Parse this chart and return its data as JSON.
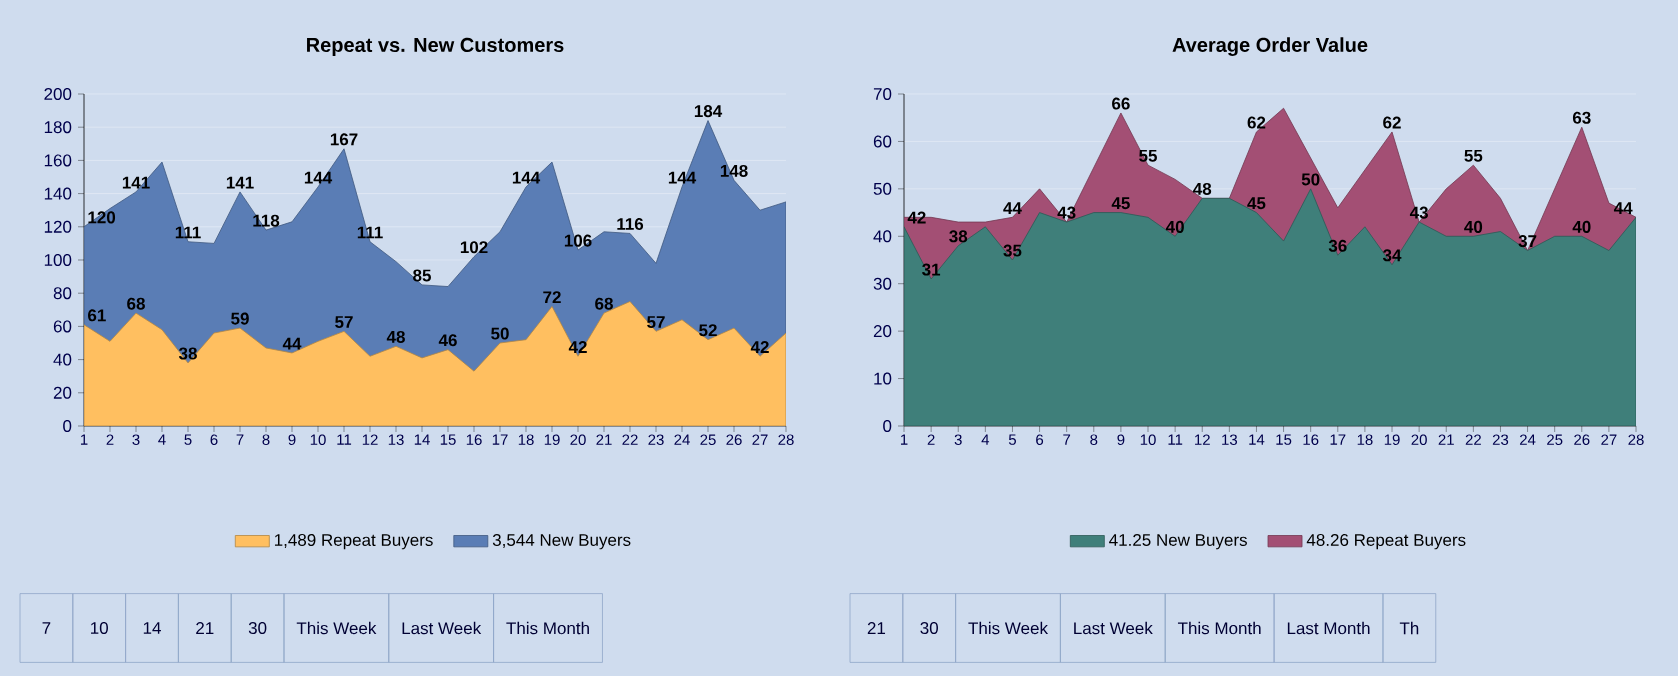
{
  "chart_data": [
    {
      "type": "area",
      "title": "Repeat vs. New Customers",
      "x": [
        1,
        2,
        3,
        4,
        5,
        6,
        7,
        8,
        9,
        10,
        11,
        12,
        13,
        14,
        15,
        16,
        17,
        18,
        19,
        20,
        21,
        22,
        23,
        24,
        25,
        26,
        27,
        28
      ],
      "xlim": [
        1,
        28
      ],
      "xticks": [
        1,
        2,
        3,
        4,
        5,
        6,
        7,
        8,
        9,
        10,
        11,
        12,
        13,
        14,
        15,
        16,
        17,
        18,
        19,
        20,
        21,
        22,
        23,
        24,
        25,
        26,
        27,
        28
      ],
      "ylim": [
        0,
        200
      ],
      "yticks": [
        0,
        20,
        40,
        60,
        80,
        100,
        120,
        140,
        160,
        180,
        200
      ],
      "grid": "y",
      "legend": "bottom",
      "series": [
        {
          "name": "1,489 Repeat Buyers",
          "color": "#ffbf60",
          "values": [
            61,
            51,
            68,
            58,
            38,
            56,
            59,
            47,
            44,
            51,
            57,
            42,
            48,
            41,
            46,
            33,
            50,
            52,
            72,
            42,
            68,
            75,
            57,
            64,
            52,
            59,
            42,
            56
          ],
          "value_labels": [
            "61",
            null,
            "68",
            null,
            "38",
            null,
            "59",
            null,
            "44",
            null,
            "57",
            null,
            "48",
            null,
            "46",
            null,
            "50",
            null,
            "72",
            "42",
            "68",
            null,
            "57",
            null,
            "52",
            null,
            "42",
            null
          ]
        },
        {
          "name": "3,544 New Buyers",
          "color": "#5a7db5",
          "values": [
            120,
            131,
            141,
            159,
            111,
            110,
            141,
            118,
            123,
            144,
            167,
            111,
            99,
            85,
            84,
            102,
            117,
            144,
            159,
            106,
            117,
            116,
            98,
            144,
            184,
            148,
            130,
            135
          ],
          "value_labels": [
            "120",
            null,
            "141",
            null,
            "111",
            null,
            "141",
            "118",
            null,
            "144",
            "167",
            "111",
            null,
            "85",
            null,
            "102",
            null,
            "144",
            null,
            "106",
            null,
            "116",
            null,
            "144",
            "184",
            "148",
            null,
            null
          ]
        }
      ],
      "annotations": [
        "7",
        "10",
        "14",
        "21",
        "30",
        "This Week",
        "Last Week",
        "This Month"
      ]
    },
    {
      "type": "area",
      "title": "Average Order Value",
      "x": [
        1,
        2,
        3,
        4,
        5,
        6,
        7,
        8,
        9,
        10,
        11,
        12,
        13,
        14,
        15,
        16,
        17,
        18,
        19,
        20,
        21,
        22,
        23,
        24,
        25,
        26,
        27,
        28
      ],
      "xlim": [
        1,
        28
      ],
      "xticks": [
        1,
        2,
        3,
        4,
        5,
        6,
        7,
        8,
        9,
        10,
        11,
        12,
        13,
        14,
        15,
        16,
        17,
        18,
        19,
        20,
        21,
        22,
        23,
        24,
        25,
        26,
        27,
        28
      ],
      "ylim": [
        0,
        70
      ],
      "yticks": [
        0,
        10,
        20,
        30,
        40,
        50,
        60,
        70
      ],
      "grid": "y",
      "legend": "bottom",
      "series": [
        {
          "name": "41.25 New Buyers",
          "color": "#3f7f7a",
          "values": [
            42,
            31,
            38,
            42,
            35,
            45,
            43,
            45,
            45,
            44,
            40,
            48,
            48,
            45,
            39,
            50,
            36,
            42,
            34,
            43,
            40,
            40,
            41,
            37,
            40,
            40,
            37,
            44
          ],
          "value_labels": [
            "42",
            "31",
            "38",
            null,
            "35",
            null,
            null,
            null,
            "45",
            null,
            "40",
            "48",
            null,
            "45",
            null,
            "50",
            "36",
            null,
            "34",
            null,
            null,
            "40",
            null,
            "37",
            null,
            "40",
            null,
            null
          ]
        },
        {
          "name": "48.26 Repeat Buyers",
          "color": "#a34f74",
          "values": [
            44,
            44,
            43,
            43,
            44,
            50,
            43,
            null,
            66,
            55,
            52,
            48,
            48,
            62,
            67,
            null,
            46,
            null,
            62,
            43,
            50,
            55,
            48,
            37,
            null,
            63,
            47,
            44
          ],
          "value_labels": [
            null,
            null,
            null,
            null,
            "44",
            null,
            "43",
            null,
            "66",
            "55",
            null,
            null,
            null,
            "62",
            null,
            null,
            null,
            null,
            "62",
            "43",
            null,
            "55",
            null,
            null,
            null,
            "63",
            null,
            "44"
          ]
        }
      ],
      "annotations": [
        "21",
        "30",
        "This Week",
        "Last Week",
        "This Month",
        "Last Month",
        "Th"
      ]
    }
  ]
}
